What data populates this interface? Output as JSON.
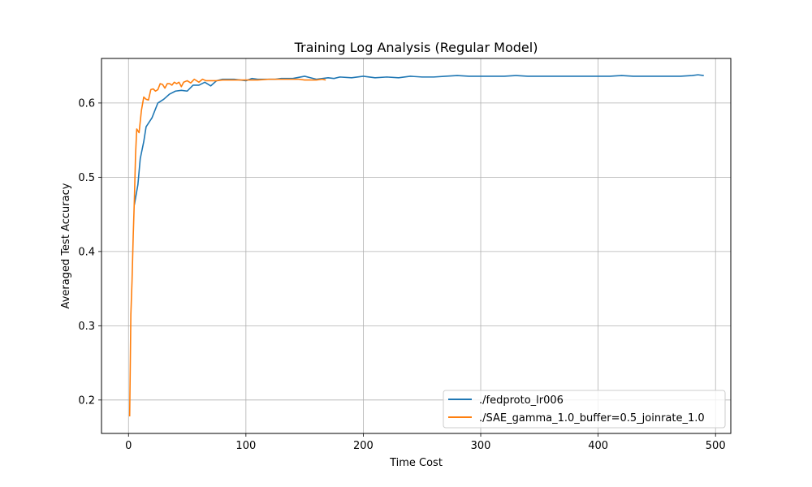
{
  "chart_data": {
    "type": "line",
    "title": "Training Log Analysis (Regular Model)",
    "xlabel": "Time Cost",
    "ylabel": "Averaged Test Accuracy",
    "xlim": [
      -23,
      513
    ],
    "ylim": [
      0.155,
      0.66
    ],
    "xticks": [
      0,
      100,
      200,
      300,
      400,
      500
    ],
    "yticks": [
      0.2,
      0.3,
      0.4,
      0.5,
      0.6
    ],
    "ytick_labels": [
      "0.2",
      "0.3",
      "0.4",
      "0.5",
      "0.6"
    ],
    "grid": true,
    "legend_position": "lower-right",
    "series": [
      {
        "name": "./fedproto_lr006",
        "color": "#1f77b4",
        "points": [
          [
            5,
            0.463
          ],
          [
            8,
            0.49
          ],
          [
            10,
            0.525
          ],
          [
            13,
            0.548
          ],
          [
            15,
            0.568
          ],
          [
            20,
            0.58
          ],
          [
            25,
            0.6
          ],
          [
            30,
            0.605
          ],
          [
            35,
            0.612
          ],
          [
            40,
            0.616
          ],
          [
            45,
            0.617
          ],
          [
            50,
            0.616
          ],
          [
            55,
            0.624
          ],
          [
            60,
            0.624
          ],
          [
            65,
            0.628
          ],
          [
            70,
            0.623
          ],
          [
            75,
            0.63
          ],
          [
            80,
            0.632
          ],
          [
            90,
            0.632
          ],
          [
            100,
            0.63
          ],
          [
            105,
            0.633
          ],
          [
            110,
            0.632
          ],
          [
            120,
            0.632
          ],
          [
            125,
            0.632
          ],
          [
            130,
            0.633
          ],
          [
            140,
            0.633
          ],
          [
            150,
            0.636
          ],
          [
            160,
            0.632
          ],
          [
            170,
            0.634
          ],
          [
            175,
            0.633
          ],
          [
            180,
            0.635
          ],
          [
            190,
            0.634
          ],
          [
            200,
            0.636
          ],
          [
            210,
            0.634
          ],
          [
            220,
            0.635
          ],
          [
            230,
            0.634
          ],
          [
            240,
            0.636
          ],
          [
            250,
            0.635
          ],
          [
            260,
            0.635
          ],
          [
            270,
            0.636
          ],
          [
            280,
            0.637
          ],
          [
            290,
            0.636
          ],
          [
            300,
            0.636
          ],
          [
            310,
            0.636
          ],
          [
            320,
            0.636
          ],
          [
            330,
            0.637
          ],
          [
            340,
            0.636
          ],
          [
            350,
            0.636
          ],
          [
            360,
            0.636
          ],
          [
            370,
            0.636
          ],
          [
            380,
            0.636
          ],
          [
            390,
            0.636
          ],
          [
            400,
            0.636
          ],
          [
            410,
            0.636
          ],
          [
            420,
            0.637
          ],
          [
            430,
            0.636
          ],
          [
            440,
            0.636
          ],
          [
            450,
            0.636
          ],
          [
            460,
            0.636
          ],
          [
            470,
            0.636
          ],
          [
            480,
            0.637
          ],
          [
            485,
            0.638
          ],
          [
            490,
            0.637
          ]
        ]
      },
      {
        "name": "./SAE_gamma_1.0_buffer=0.5_joinrate_1.0",
        "color": "#ff7f0e",
        "points": [
          [
            1,
            0.178
          ],
          [
            2,
            0.315
          ],
          [
            3,
            0.36
          ],
          [
            4,
            0.42
          ],
          [
            5,
            0.47
          ],
          [
            6,
            0.53
          ],
          [
            7,
            0.565
          ],
          [
            9,
            0.56
          ],
          [
            11,
            0.59
          ],
          [
            13,
            0.608
          ],
          [
            15,
            0.605
          ],
          [
            17,
            0.604
          ],
          [
            19,
            0.618
          ],
          [
            21,
            0.619
          ],
          [
            23,
            0.616
          ],
          [
            25,
            0.618
          ],
          [
            27,
            0.626
          ],
          [
            29,
            0.625
          ],
          [
            31,
            0.62
          ],
          [
            33,
            0.626
          ],
          [
            35,
            0.626
          ],
          [
            37,
            0.624
          ],
          [
            39,
            0.628
          ],
          [
            41,
            0.626
          ],
          [
            43,
            0.628
          ],
          [
            45,
            0.622
          ],
          [
            47,
            0.628
          ],
          [
            50,
            0.63
          ],
          [
            53,
            0.627
          ],
          [
            56,
            0.632
          ],
          [
            60,
            0.628
          ],
          [
            63,
            0.632
          ],
          [
            66,
            0.63
          ],
          [
            70,
            0.63
          ],
          [
            75,
            0.63
          ],
          [
            80,
            0.631
          ],
          [
            90,
            0.631
          ],
          [
            100,
            0.631
          ],
          [
            110,
            0.631
          ],
          [
            120,
            0.632
          ],
          [
            130,
            0.632
          ],
          [
            140,
            0.632
          ],
          [
            145,
            0.632
          ],
          [
            150,
            0.631
          ],
          [
            155,
            0.631
          ],
          [
            160,
            0.631
          ],
          [
            165,
            0.632
          ],
          [
            168,
            0.631
          ]
        ]
      }
    ]
  }
}
